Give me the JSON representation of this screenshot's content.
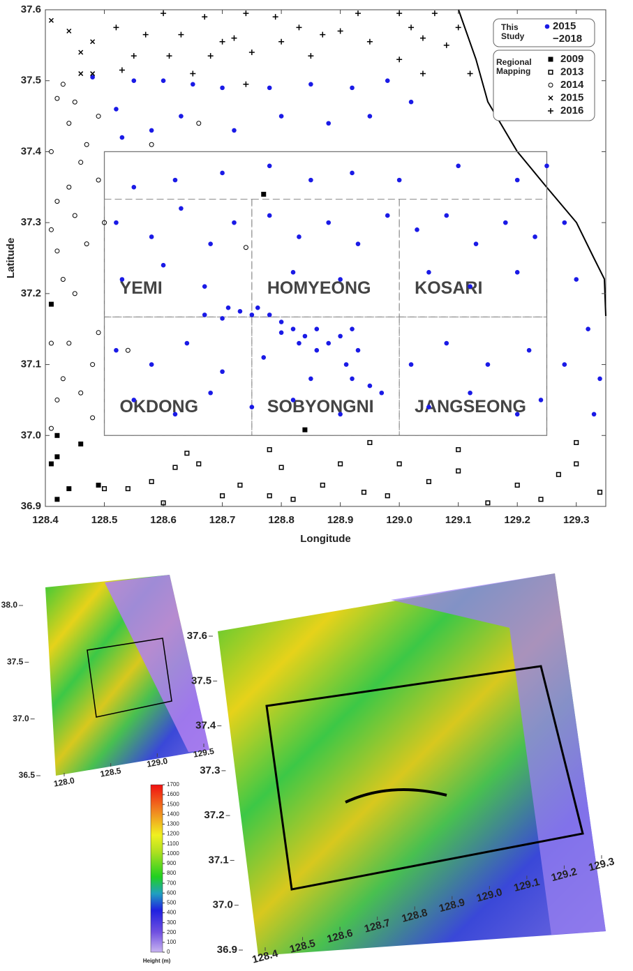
{
  "chart_data": [
    {
      "type": "scatter",
      "x_label": "Longitude",
      "y_label": "Latitude",
      "xlim": [
        128.4,
        129.35
      ],
      "ylim": [
        36.9,
        37.6
      ],
      "xticks": [
        128.4,
        128.5,
        128.6,
        128.7,
        128.8,
        128.9,
        {
          "value": 129,
          "label": "129.0"
        },
        129.1,
        129.2,
        129.3
      ],
      "yticks": [
        36.9,
        {
          "value": 37,
          "label": "37.0"
        },
        37.1,
        37.2,
        37.3,
        37.4,
        37.5,
        37.6
      ],
      "legend_groups": [
        "This Study",
        "Regional Mapping"
      ],
      "legend": "upper right",
      "study_area": {
        "x": [
          128.5,
          129.25
        ],
        "y": [
          37.0,
          37.4
        ]
      },
      "regions": [
        {
          "name": "YEMI",
          "x": [
            128.5,
            128.75
          ],
          "y": [
            37.167,
            37.333
          ]
        },
        {
          "name": "HOMYEONG",
          "x": [
            128.75,
            129.0
          ],
          "y": [
            37.167,
            37.333
          ]
        },
        {
          "name": "KOSARI",
          "x": [
            129.0,
            129.25
          ],
          "y": [
            37.167,
            37.333
          ]
        },
        {
          "name": "OKDONG",
          "x": [
            128.5,
            128.75
          ],
          "y": [
            37.0,
            37.167
          ]
        },
        {
          "name": "SOBYONGNI",
          "x": [
            128.75,
            129.0
          ],
          "y": [
            37.0,
            37.167
          ]
        },
        {
          "name": "JANGSEONG",
          "x": [
            129.0,
            129.25
          ],
          "y": [
            37.0,
            37.167
          ]
        }
      ],
      "series": [
        {
          "name": "2015 −2018",
          "color": "#1a1ae6",
          "marker": "dot",
          "x": [
            128.48,
            128.52,
            128.55,
            128.6,
            128.65,
            128.7,
            128.78,
            128.85,
            128.92,
            128.98,
            128.53,
            128.58,
            128.63,
            128.72,
            128.8,
            128.88,
            128.95,
            129.02,
            128.55,
            128.62,
            128.7,
            128.78,
            128.85,
            128.92,
            129.0,
            129.1,
            129.2,
            129.25,
            129.28,
            129.3,
            129.32,
            129.34,
            129.33,
            129.28,
            128.52,
            128.58,
            128.63,
            128.68,
            128.72,
            128.78,
            128.83,
            128.88,
            128.93,
            128.98,
            129.03,
            129.08,
            129.13,
            129.18,
            129.23,
            128.53,
            128.6,
            128.67,
            128.82,
            128.9,
            129.05,
            129.12,
            129.2,
            128.52,
            128.58,
            128.64,
            128.7,
            128.77,
            128.85,
            129.02,
            129.08,
            129.15,
            129.22,
            128.55,
            128.62,
            128.68,
            128.75,
            128.82,
            128.9,
            128.97,
            129.05,
            129.12,
            129.2,
            129.24,
            128.67,
            128.7,
            128.73,
            128.76,
            128.78,
            128.8,
            128.82,
            128.84,
            128.86,
            128.88,
            128.9,
            128.92,
            128.93,
            128.91,
            128.92,
            128.95,
            128.86,
            128.83,
            128.8,
            128.75,
            128.71
          ],
          "values": [
            37.505,
            37.46,
            37.5,
            37.5,
            37.495,
            37.49,
            37.49,
            37.495,
            37.49,
            37.5,
            37.42,
            37.43,
            37.45,
            37.43,
            37.45,
            37.44,
            37.45,
            37.47,
            37.35,
            37.36,
            37.37,
            37.38,
            37.36,
            37.37,
            37.36,
            37.38,
            37.36,
            37.38,
            37.3,
            37.22,
            37.15,
            37.08,
            37.03,
            37.1,
            37.3,
            37.28,
            37.32,
            37.27,
            37.3,
            37.31,
            37.28,
            37.3,
            37.27,
            37.31,
            37.29,
            37.31,
            37.27,
            37.3,
            37.28,
            37.22,
            37.24,
            37.21,
            37.23,
            37.22,
            37.23,
            37.21,
            37.23,
            37.12,
            37.1,
            37.13,
            37.09,
            37.11,
            37.08,
            37.1,
            37.13,
            37.1,
            37.12,
            37.05,
            37.03,
            37.06,
            37.04,
            37.05,
            37.03,
            37.06,
            37.04,
            37.06,
            37.03,
            37.05,
            37.17,
            37.165,
            37.175,
            37.18,
            37.17,
            37.16,
            37.15,
            37.14,
            37.15,
            37.13,
            37.14,
            37.15,
            37.12,
            37.1,
            37.08,
            37.07,
            37.12,
            37.13,
            37.145,
            37.17,
            37.18
          ]
        },
        {
          "name": "2009",
          "color": "#000000",
          "marker": "square",
          "x": [
            128.41,
            128.42,
            128.41,
            128.42,
            128.44,
            128.42,
            128.46,
            128.49,
            128.77,
            128.84
          ],
          "values": [
            37.185,
            37.0,
            36.96,
            36.97,
            36.925,
            36.91,
            36.988,
            36.93,
            37.34,
            37.008
          ]
        },
        {
          "name": "2013",
          "color": "#000000",
          "marker": "open-square",
          "x": [
            128.5,
            128.54,
            128.58,
            128.6,
            128.62,
            128.66,
            128.7,
            128.73,
            128.78,
            128.8,
            128.82,
            128.87,
            128.9,
            128.94,
            128.98,
            129.0,
            129.05,
            129.1,
            129.15,
            129.2,
            129.24,
            129.27,
            129.3,
            129.34,
            128.64,
            128.78,
            128.95,
            129.1,
            129.3
          ],
          "values": [
            36.925,
            36.925,
            36.935,
            36.905,
            36.955,
            36.96,
            36.915,
            36.93,
            36.915,
            36.955,
            36.91,
            36.93,
            36.96,
            36.92,
            36.915,
            36.96,
            36.935,
            36.95,
            36.905,
            36.93,
            36.91,
            36.945,
            36.96,
            36.92,
            36.975,
            36.98,
            36.99,
            36.98,
            36.99
          ]
        },
        {
          "name": "2014",
          "color": "#000000",
          "marker": "open-circle",
          "x": [
            128.41,
            128.42,
            128.41,
            128.42,
            128.43,
            128.42,
            128.44,
            128.45,
            128.46,
            128.44,
            128.45,
            128.47,
            128.43,
            128.45,
            128.41,
            128.44,
            128.42,
            128.43,
            128.46,
            128.48,
            128.48,
            128.41,
            128.5,
            128.49,
            128.54,
            128.74,
            128.66,
            128.58,
            128.49,
            128.47,
            128.49
          ],
          "values": [
            37.4,
            37.33,
            37.29,
            37.26,
            37.495,
            37.475,
            37.44,
            37.47,
            37.385,
            37.35,
            37.31,
            37.27,
            37.22,
            37.2,
            37.13,
            37.13,
            37.05,
            37.08,
            37.06,
            37.1,
            37.025,
            37.01,
            37.3,
            37.45,
            37.12,
            37.265,
            37.44,
            37.41,
            37.36,
            37.41,
            37.145
          ]
        },
        {
          "name": "2015",
          "color": "#000000",
          "marker": "cross",
          "x": [
            128.41,
            128.44,
            128.46,
            128.48,
            128.46,
            128.48
          ],
          "values": [
            37.585,
            37.57,
            37.54,
            37.555,
            37.51,
            37.51
          ]
        },
        {
          "name": "2016",
          "color": "#000000",
          "marker": "plus",
          "x": [
            128.52,
            128.55,
            128.57,
            128.6,
            128.61,
            128.63,
            128.65,
            128.67,
            128.68,
            128.7,
            128.72,
            128.74,
            128.75,
            128.79,
            128.8,
            128.83,
            128.85,
            128.87,
            128.9,
            128.93,
            128.95,
            129.0,
            129.02,
            129.04,
            129.06,
            129.08,
            129.1,
            129.12,
            129.04,
            129.0,
            128.53,
            128.74
          ],
          "values": [
            37.575,
            37.535,
            37.565,
            37.595,
            37.535,
            37.565,
            37.51,
            37.59,
            37.535,
            37.555,
            37.56,
            37.595,
            37.54,
            37.59,
            37.555,
            37.575,
            37.535,
            37.565,
            37.57,
            37.595,
            37.555,
            37.595,
            37.575,
            37.56,
            37.595,
            37.55,
            37.575,
            37.51,
            37.51,
            37.53,
            37.515,
            37.495
          ]
        }
      ]
    },
    {
      "type": "map",
      "xlim": [
        128,
        129.5
      ],
      "ylim": [
        36.5,
        38
      ],
      "xticks": [
        {
          "value": 128,
          "label": "128.0"
        },
        128.5,
        {
          "value": 129,
          "label": "129.0"
        },
        129.5
      ],
      "yticks": [
        36.5,
        {
          "value": 37,
          "label": "37.0"
        },
        37.5,
        {
          "value": 38,
          "label": "38.0"
        }
      ]
    },
    {
      "type": "map",
      "xlim": [
        128.4,
        129.3
      ],
      "ylim": [
        36.9,
        37.6
      ],
      "xticks": [
        128.4,
        128.5,
        128.6,
        128.7,
        128.8,
        128.9,
        {
          "value": 129,
          "label": "129.0"
        },
        129.1,
        129.2,
        129.3
      ],
      "yticks": [
        36.9,
        {
          "value": 37,
          "label": "37.0"
        },
        37.1,
        37.2,
        37.3,
        37.4,
        37.5,
        37.6
      ]
    },
    {
      "type": "colorbar",
      "label": "Height (m)",
      "ylim": [
        0,
        1700
      ],
      "yticks": [
        0,
        100,
        200,
        300,
        400,
        500,
        600,
        700,
        800,
        900,
        1000,
        1100,
        1200,
        1300,
        1400,
        1500,
        1600,
        1700
      ]
    }
  ]
}
